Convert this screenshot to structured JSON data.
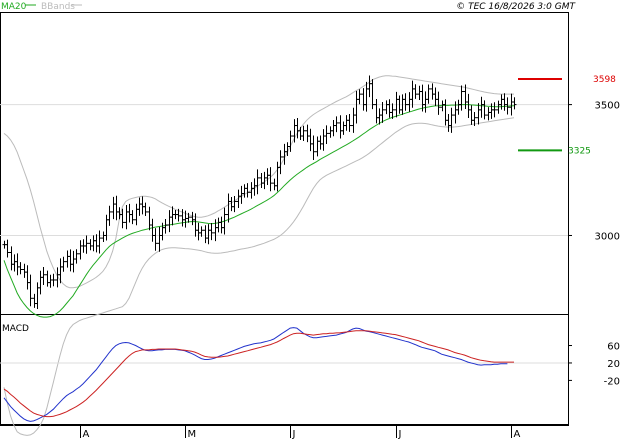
{
  "header": {
    "legend_ma": "MA20",
    "legend_bb": "BBands",
    "copyright": "© TEC 16/8/2026 3:0 GMT"
  },
  "colors": {
    "ma": "#22aa22",
    "bbands": "#bbbbbb",
    "price": "#000000",
    "macd": "#2233cc",
    "signal": "#cc2222",
    "resistance": "#dd0000",
    "support": "#119911",
    "grid": "#dddddd"
  },
  "chart_data": [
    {
      "type": "ohlc",
      "name": "price",
      "ylim": [
        2700,
        3850
      ],
      "yticks": [
        3000,
        3500
      ],
      "ytick_labels": [
        "3000",
        "3500"
      ],
      "xticks": [
        {
          "label": "A",
          "index": 23
        },
        {
          "label": "M",
          "index": 55
        },
        {
          "label": "J",
          "index": 87
        },
        {
          "label": "J",
          "index": 119
        },
        {
          "label": "A",
          "index": 154
        }
      ],
      "levels": [
        {
          "name": "resistance",
          "label": "3598",
          "value": 3598
        },
        {
          "name": "support",
          "label": "3325",
          "value": 3325
        }
      ],
      "close": [
        2965,
        2935,
        2890,
        2900,
        2880,
        2870,
        2860,
        2820,
        2760,
        2740,
        2800,
        2840,
        2850,
        2820,
        2830,
        2830,
        2850,
        2880,
        2900,
        2920,
        2890,
        2910,
        2930,
        2960,
        2960,
        2970,
        2960,
        2980,
        2960,
        2990,
        3000,
        3060,
        3090,
        3120,
        3090,
        3080,
        3050,
        3090,
        3080,
        3060,
        3100,
        3120,
        3110,
        3090,
        3040,
        3000,
        2970,
        3000,
        3030,
        3040,
        3070,
        3080,
        3080,
        3075,
        3060,
        3065,
        3070,
        3060,
        3020,
        3010,
        3020,
        2990,
        3020,
        3010,
        3030,
        3050,
        3030,
        3080,
        3130,
        3110,
        3130,
        3150,
        3160,
        3180,
        3165,
        3180,
        3190,
        3220,
        3200,
        3220,
        3230,
        3200,
        3190,
        3260,
        3300,
        3320,
        3340,
        3380,
        3420,
        3400,
        3380,
        3400,
        3380,
        3350,
        3320,
        3360,
        3350,
        3380,
        3390,
        3400,
        3420,
        3430,
        3400,
        3420,
        3440,
        3420,
        3460,
        3520,
        3540,
        3500,
        3560,
        3580,
        3500,
        3450,
        3460,
        3480,
        3500,
        3470,
        3480,
        3520,
        3480,
        3520,
        3500,
        3520,
        3560,
        3540,
        3550,
        3500,
        3520,
        3560,
        3540,
        3520,
        3490,
        3500,
        3440,
        3420,
        3460,
        3480,
        3500,
        3550,
        3510,
        3480,
        3440,
        3450,
        3480,
        3500,
        3460,
        3470,
        3480,
        3480,
        3500,
        3520,
        3500,
        3490,
        3510,
        3500
      ],
      "ma20": [
        2905,
        2870,
        2840,
        2810,
        2780,
        2758,
        2740,
        2725,
        2712,
        2702,
        2695,
        2690,
        2688,
        2688,
        2690,
        2695,
        2702,
        2712,
        2725,
        2740,
        2755,
        2770,
        2790,
        2810,
        2830,
        2850,
        2868,
        2885,
        2900,
        2915,
        2930,
        2945,
        2958,
        2968,
        2976,
        2983,
        2990,
        2997,
        3003,
        3008,
        3012,
        3016,
        3020,
        3023,
        3026,
        3029,
        3032,
        3034,
        3036,
        3038,
        3040,
        3042,
        3044,
        3046,
        3048,
        3050,
        3052,
        3053,
        3053,
        3052,
        3050,
        3048,
        3046,
        3045,
        3046,
        3048,
        3051,
        3055,
        3060,
        3065,
        3070,
        3076,
        3082,
        3088,
        3094,
        3100,
        3107,
        3114,
        3121,
        3128,
        3135,
        3143,
        3152,
        3163,
        3175,
        3188,
        3200,
        3212,
        3223,
        3233,
        3242,
        3251,
        3260,
        3268,
        3275,
        3282,
        3290,
        3297,
        3304,
        3311,
        3318,
        3325,
        3332,
        3339,
        3346,
        3353,
        3361,
        3369,
        3377,
        3386,
        3395,
        3404,
        3412,
        3420,
        3428,
        3435,
        3441,
        3446,
        3451,
        3455,
        3459,
        3463,
        3467,
        3471,
        3475,
        3479,
        3483,
        3486,
        3489,
        3491,
        3493,
        3495,
        3496,
        3497,
        3497,
        3497,
        3498,
        3498,
        3499,
        3500,
        3500,
        3500,
        3499,
        3498,
        3497,
        3496,
        3495,
        3494,
        3493,
        3492,
        3492,
        3492,
        3493,
        3494,
        3495,
        3496
      ],
      "bb_upper": [
        3390,
        3380,
        3365,
        3345,
        3318,
        3285,
        3250,
        3215,
        3175,
        3130,
        3080,
        3030,
        2985,
        2940,
        2905,
        2875,
        2850,
        2830,
        2815,
        2805,
        2800,
        2800,
        2802,
        2806,
        2812,
        2818,
        2825,
        2832,
        2840,
        2850,
        2862,
        2880,
        2905,
        2940,
        2990,
        3060,
        3110,
        3130,
        3138,
        3142,
        3145,
        3148,
        3150,
        3150,
        3148,
        3145,
        3140,
        3132,
        3125,
        3118,
        3112,
        3106,
        3100,
        3095,
        3090,
        3085,
        3080,
        3076,
        3072,
        3070,
        3070,
        3072,
        3075,
        3080,
        3086,
        3093,
        3100,
        3108,
        3116,
        3124,
        3132,
        3140,
        3148,
        3156,
        3164,
        3172,
        3180,
        3188,
        3196,
        3204,
        3213,
        3223,
        3235,
        3250,
        3268,
        3290,
        3315,
        3340,
        3365,
        3388,
        3408,
        3425,
        3440,
        3452,
        3462,
        3470,
        3477,
        3484,
        3491,
        3498,
        3505,
        3512,
        3518,
        3524,
        3530,
        3537,
        3545,
        3553,
        3560,
        3568,
        3576,
        3585,
        3595,
        3600,
        3605,
        3608,
        3610,
        3610,
        3609,
        3608,
        3606,
        3604,
        3602,
        3600,
        3598,
        3596,
        3594,
        3592,
        3590,
        3588,
        3586,
        3584,
        3582,
        3580,
        3578,
        3576,
        3574,
        3572,
        3570,
        3568,
        3566,
        3563,
        3560,
        3557,
        3554,
        3551,
        3548,
        3546,
        3544,
        3542,
        3541,
        3540,
        3540,
        3540,
        3540,
        3540
      ],
      "bb_lower": [
        2420,
        2360,
        2310,
        2275,
        2250,
        2242,
        2238,
        2236,
        2238,
        2245,
        2258,
        2275,
        2300,
        2340,
        2390,
        2440,
        2490,
        2540,
        2585,
        2620,
        2645,
        2660,
        2668,
        2675,
        2680,
        2684,
        2688,
        2692,
        2696,
        2700,
        2704,
        2708,
        2712,
        2716,
        2720,
        2724,
        2728,
        2740,
        2760,
        2790,
        2820,
        2850,
        2875,
        2895,
        2910,
        2922,
        2932,
        2940,
        2946,
        2950,
        2952,
        2953,
        2953,
        2952,
        2951,
        2950,
        2949,
        2948,
        2946,
        2944,
        2942,
        2938,
        2935,
        2933,
        2932,
        2932,
        2933,
        2935,
        2937,
        2940,
        2942,
        2945,
        2948,
        2950,
        2952,
        2955,
        2958,
        2962,
        2966,
        2970,
        2975,
        2980,
        2985,
        2992,
        3000,
        3010,
        3022,
        3036,
        3052,
        3070,
        3090,
        3112,
        3135,
        3158,
        3180,
        3198,
        3212,
        3222,
        3230,
        3236,
        3242,
        3248,
        3254,
        3260,
        3266,
        3272,
        3278,
        3284,
        3290,
        3297,
        3305,
        3314,
        3324,
        3334,
        3344,
        3354,
        3364,
        3374,
        3384,
        3394,
        3402,
        3410,
        3417,
        3422,
        3426,
        3428,
        3429,
        3429,
        3428,
        3426,
        3423,
        3420,
        3418,
        3416,
        3415,
        3414,
        3414,
        3415,
        3416,
        3418,
        3420,
        3422,
        3424,
        3426,
        3428,
        3430,
        3432,
        3434,
        3436,
        3438,
        3440,
        3442,
        3444,
        3446,
        3448,
        3450
      ]
    },
    {
      "type": "line",
      "name": "macd",
      "title": "MACD",
      "ylim": [
        -120,
        130
      ],
      "yticks": [
        60,
        20,
        -20
      ],
      "ytick_labels": [
        "60",
        "20",
        "-20"
      ],
      "series": [
        {
          "name": "macd",
          "values": [
            -60,
            -70,
            -80,
            -88,
            -95,
            -102,
            -108,
            -112,
            -114,
            -113,
            -110,
            -106,
            -102,
            -98,
            -92,
            -86,
            -78,
            -70,
            -62,
            -55,
            -50,
            -46,
            -40,
            -35,
            -28,
            -20,
            -12,
            -4,
            4,
            14,
            24,
            34,
            44,
            53,
            60,
            64,
            66,
            67,
            66,
            63,
            60,
            56,
            52,
            49,
            48,
            48,
            49,
            50,
            50,
            51,
            51,
            51,
            51,
            50,
            49,
            48,
            45,
            42,
            38,
            34,
            30,
            28,
            28,
            29,
            31,
            34,
            37,
            40,
            43,
            46,
            49,
            52,
            55,
            58,
            60,
            62,
            64,
            65,
            66,
            68,
            70,
            72,
            75,
            80,
            85,
            90,
            95,
            100,
            101,
            100,
            94,
            88,
            84,
            80,
            78,
            78,
            79,
            80,
            81,
            82,
            83,
            84,
            86,
            88,
            90,
            94,
            98,
            100,
            99,
            96,
            93,
            92,
            90,
            88,
            86,
            84,
            82,
            80,
            78,
            76,
            74,
            72,
            70,
            68,
            65,
            62,
            59,
            56,
            54,
            52,
            50,
            48,
            44,
            40,
            38,
            36,
            34,
            32,
            30,
            28,
            25,
            22,
            20,
            18,
            16,
            15,
            16,
            16,
            16,
            17,
            17,
            18,
            18,
            18
          ]
        },
        {
          "name": "signal",
          "values": [
            -40,
            -45,
            -52,
            -58,
            -65,
            -72,
            -78,
            -84,
            -90,
            -95,
            -98,
            -100,
            -102,
            -103,
            -103,
            -102,
            -100,
            -98,
            -95,
            -92,
            -88,
            -84,
            -80,
            -75,
            -70,
            -64,
            -57,
            -50,
            -43,
            -35,
            -27,
            -19,
            -11,
            -3,
            5,
            13,
            21,
            29,
            36,
            42,
            46,
            48,
            50,
            50,
            50,
            51,
            51,
            52,
            52,
            52,
            52,
            52,
            52,
            51,
            50,
            49,
            48,
            47,
            45,
            42,
            38,
            35,
            34,
            33,
            33,
            33,
            34,
            35,
            36,
            38,
            40,
            42,
            44,
            46,
            48,
            50,
            52,
            54,
            56,
            58,
            60,
            62,
            65,
            68,
            72,
            76,
            80,
            84,
            87,
            88,
            88,
            87,
            86,
            85,
            84,
            85,
            86,
            87,
            87,
            88,
            88,
            89,
            89,
            90,
            91,
            92,
            93,
            94,
            94,
            94,
            94,
            93,
            92,
            91,
            90,
            89,
            88,
            87,
            86,
            85,
            83,
            81,
            79,
            77,
            75,
            73,
            71,
            68,
            65,
            62,
            60,
            58,
            56,
            54,
            52,
            50,
            47,
            44,
            42,
            40,
            38,
            35,
            32,
            30,
            28,
            26,
            25,
            24,
            23,
            22,
            22,
            22,
            22,
            22,
            22,
            22
          ]
        }
      ]
    }
  ]
}
